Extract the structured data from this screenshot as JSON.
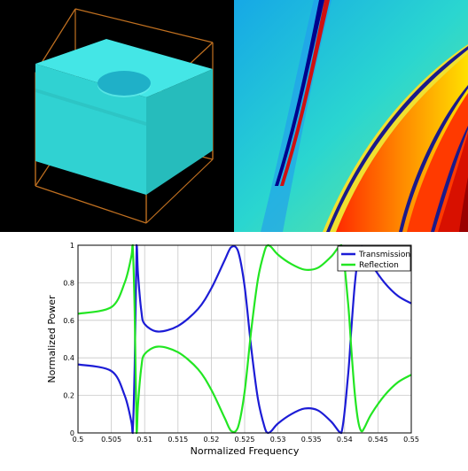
{
  "colors": {
    "transmission": "#1c1cd6",
    "reflection": "#22e622",
    "box_face": "#33d6d6",
    "box_wire": "#c07020",
    "background_3d": "#000000"
  },
  "icons": [
    "cube-3d-render",
    "field-colormap"
  ],
  "chart_data": {
    "type": "line",
    "title": "",
    "xlabel": "Normalized Frequency",
    "ylabel": "Normalized Power",
    "xlim": [
      0.5,
      0.55
    ],
    "ylim": [
      0,
      1
    ],
    "xticks": [
      "0.5",
      "0.505",
      "0.51",
      "0.515",
      "0.52",
      "0.525",
      "0.53",
      "0.535",
      "0.54",
      "0.545",
      "0.55"
    ],
    "yticks": [
      "0",
      "0.2",
      "0.4",
      "0.6",
      "0.8",
      "1"
    ],
    "grid": true,
    "legend_position": "top-right",
    "x": [
      0.5,
      0.505,
      0.507,
      0.508,
      0.5082,
      0.5085,
      0.5088,
      0.509,
      0.5095,
      0.51,
      0.512,
      0.515,
      0.518,
      0.52,
      0.522,
      0.523,
      0.524,
      0.525,
      0.526,
      0.527,
      0.528,
      0.5285,
      0.529,
      0.53,
      0.532,
      0.534,
      0.536,
      0.538,
      0.5395,
      0.5405,
      0.541,
      0.5415,
      0.542,
      0.5425,
      0.543,
      0.544,
      0.546,
      0.548,
      0.55
    ],
    "series": [
      {
        "name": "Transmission",
        "values": [
          0.365,
          0.33,
          0.2,
          0.06,
          0.0,
          0.35,
          1.0,
          0.85,
          0.65,
          0.58,
          0.54,
          0.57,
          0.66,
          0.77,
          0.92,
          0.99,
          0.97,
          0.78,
          0.45,
          0.18,
          0.03,
          0.0,
          0.01,
          0.05,
          0.1,
          0.13,
          0.12,
          0.06,
          0.0,
          0.3,
          0.55,
          0.78,
          0.93,
          0.99,
          0.97,
          0.9,
          0.8,
          0.73,
          0.69
        ]
      },
      {
        "name": "Reflection",
        "values": [
          0.635,
          0.67,
          0.8,
          0.94,
          1.0,
          0.65,
          0.0,
          0.15,
          0.35,
          0.42,
          0.46,
          0.43,
          0.34,
          0.23,
          0.08,
          0.01,
          0.03,
          0.22,
          0.55,
          0.82,
          0.97,
          1.0,
          0.99,
          0.95,
          0.9,
          0.87,
          0.88,
          0.94,
          1.0,
          0.7,
          0.45,
          0.22,
          0.07,
          0.01,
          0.03,
          0.1,
          0.2,
          0.27,
          0.31
        ]
      }
    ]
  }
}
